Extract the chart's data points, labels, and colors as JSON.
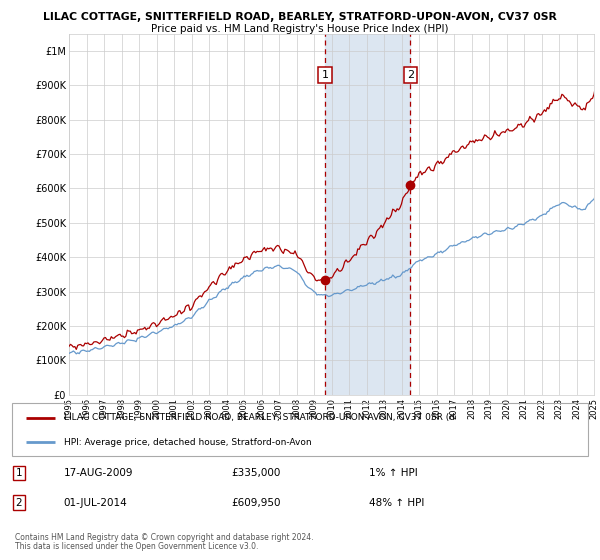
{
  "title": "LILAC COTTAGE, SNITTERFIELD ROAD, BEARLEY, STRATFORD-UPON-AVON, CV37 0SR",
  "subtitle": "Price paid vs. HM Land Registry's House Price Index (HPI)",
  "legend_line1": "LILAC COTTAGE, SNITTERFIELD ROAD, BEARLEY, STRATFORD-UPON-AVON, CV37 0SR (d",
  "legend_line2": "HPI: Average price, detached house, Stratford-on-Avon",
  "footnote1": "Contains HM Land Registry data © Crown copyright and database right 2024.",
  "footnote2": "This data is licensed under the Open Government Licence v3.0.",
  "sale1_date": "17-AUG-2009",
  "sale1_price": "£335,000",
  "sale1_hpi": "1% ↑ HPI",
  "sale1_year": 2009.625,
  "sale1_value": 335000,
  "sale2_date": "01-JUL-2014",
  "sale2_price": "£609,950",
  "sale2_hpi": "48% ↑ HPI",
  "sale2_year": 2014.5,
  "sale2_value": 609950,
  "red_color": "#aa0000",
  "blue_color": "#6699cc",
  "highlight_color": "#dce6f1",
  "ylim_min": 0,
  "ylim_max": 1050000,
  "xlim_min": 1995,
  "xlim_max": 2025,
  "xticks": [
    1995,
    1996,
    1997,
    1998,
    1999,
    2000,
    2001,
    2002,
    2003,
    2004,
    2005,
    2006,
    2007,
    2008,
    2009,
    2010,
    2011,
    2012,
    2013,
    2014,
    2015,
    2016,
    2017,
    2018,
    2019,
    2020,
    2021,
    2022,
    2023,
    2024,
    2025
  ],
  "yticks": [
    0,
    100000,
    200000,
    300000,
    400000,
    500000,
    600000,
    700000,
    800000,
    900000,
    1000000
  ],
  "ytick_labels": [
    "£0",
    "£100K",
    "£200K",
    "£300K",
    "£400K",
    "£500K",
    "£600K",
    "£700K",
    "£800K",
    "£900K",
    "£1M"
  ]
}
